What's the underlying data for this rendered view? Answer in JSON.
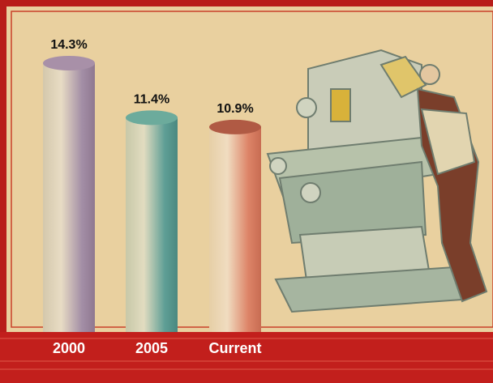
{
  "chart_data": {
    "type": "bar",
    "categories": [
      "2000",
      "2005",
      "Current"
    ],
    "values": [
      14.3,
      11.4,
      10.9
    ],
    "value_labels": [
      "14.3%",
      "11.4%",
      "10.9%"
    ],
    "series_colors": [
      {
        "side": "#a38ea6",
        "top": "#a890a8"
      },
      {
        "side": "#5f9f96",
        "top": "#6cab9c"
      },
      {
        "side": "#dd8468",
        "top": "#b05a44"
      }
    ]
  }
}
